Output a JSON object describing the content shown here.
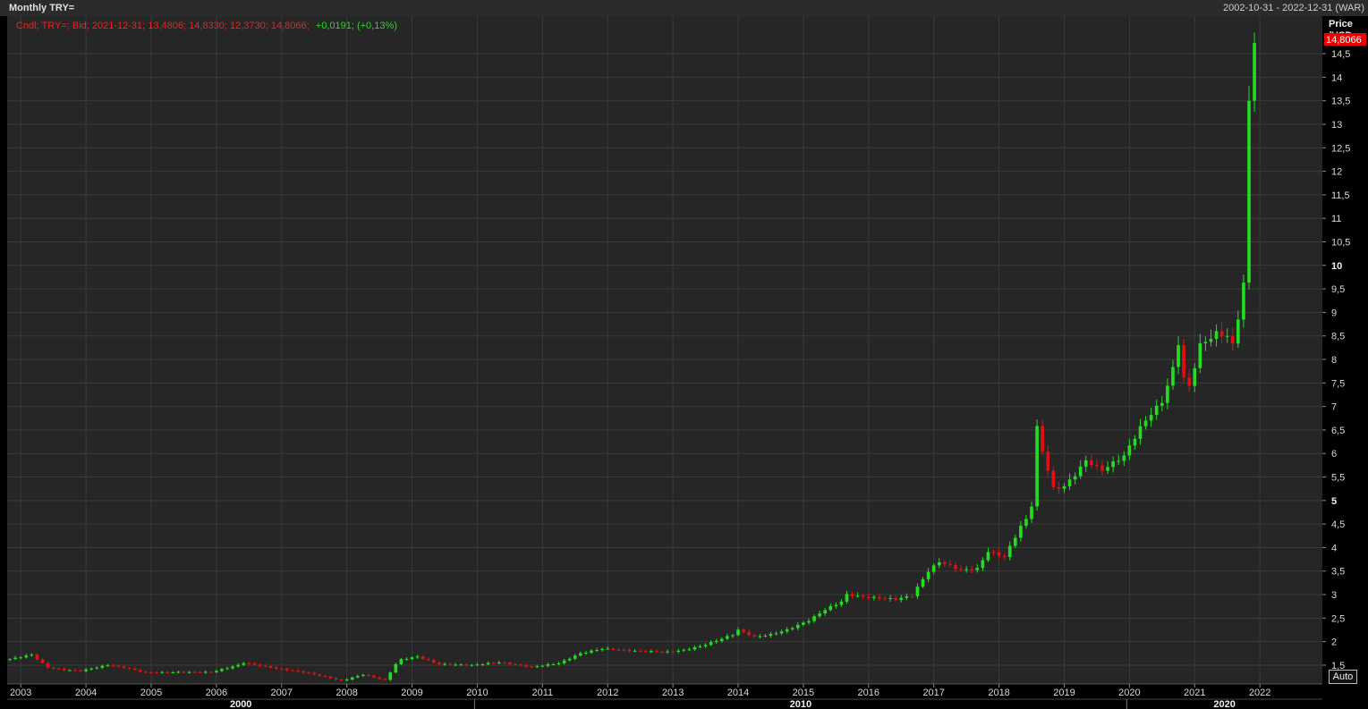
{
  "window": {
    "title": "Monthly TRY=",
    "date_range": "2002-10-31 - 2022-12-31 (WAR)",
    "auto_label": "Auto"
  },
  "legend": {
    "text": "Cndl; TRY=; Bid; 2021-12-31; 13,4806; 14,8330; 12,3730; 14,8066;",
    "change": "+0,0191; (+0,13%)"
  },
  "colors": {
    "up": "#22dd22",
    "down": "#dd1111",
    "background": "#262626",
    "grid": "#3a3a3a",
    "price_tag": "#ee0000"
  },
  "chart_data": {
    "type": "candlestick",
    "series_name": "TRY=",
    "ylabel": "Price\n/USD",
    "ylim": [
      1.1,
      15.3
    ],
    "yticks": [
      1.5,
      2,
      2.5,
      3,
      3.5,
      4,
      4.5,
      5,
      5.5,
      6,
      6.5,
      7,
      7.5,
      8,
      8.5,
      9,
      9.5,
      10,
      10.5,
      11,
      11.5,
      12,
      12.5,
      13,
      13.5,
      14,
      14.5
    ],
    "ytick_labels": [
      "1,5",
      "2",
      "2,5",
      "3",
      "3,5",
      "4",
      "4,5",
      "5",
      "5,5",
      "6",
      "6,5",
      "7",
      "7,5",
      "8",
      "8,5",
      "9",
      "9,5",
      "10",
      "10,5",
      "11",
      "11,5",
      "12",
      "12,5",
      "13",
      "13,5",
      "14",
      "14,5"
    ],
    "bold_ticks": [
      "5",
      "10"
    ],
    "last_price_label": "14,8066",
    "x_start_month": "2002-11",
    "xticks": [
      "2003",
      "2004",
      "2005",
      "2006",
      "2007",
      "2008",
      "2009",
      "2010",
      "2011",
      "2012",
      "2013",
      "2014",
      "2015",
      "2016",
      "2017",
      "2018",
      "2019",
      "2020",
      "2021",
      "2022"
    ],
    "decades": [
      "2000",
      "2010",
      "2020"
    ],
    "keyframes": [
      [
        "2002-11",
        1.63
      ],
      [
        "2003-03",
        1.72
      ],
      [
        "2003-06",
        1.45
      ],
      [
        "2003-09",
        1.4
      ],
      [
        "2003-12",
        1.38
      ],
      [
        "2004-05",
        1.5
      ],
      [
        "2004-08",
        1.45
      ],
      [
        "2004-12",
        1.34
      ],
      [
        "2005-06",
        1.35
      ],
      [
        "2005-12",
        1.35
      ],
      [
        "2006-05",
        1.5
      ],
      [
        "2006-06",
        1.55
      ],
      [
        "2006-12",
        1.43
      ],
      [
        "2007-06",
        1.33
      ],
      [
        "2007-12",
        1.17
      ],
      [
        "2008-04",
        1.3
      ],
      [
        "2008-08",
        1.18
      ],
      [
        "2008-10",
        1.52
      ],
      [
        "2008-11",
        1.62
      ],
      [
        "2009-02",
        1.68
      ],
      [
        "2009-06",
        1.52
      ],
      [
        "2009-12",
        1.5
      ],
      [
        "2010-05",
        1.56
      ],
      [
        "2010-11",
        1.46
      ],
      [
        "2011-04",
        1.54
      ],
      [
        "2011-08",
        1.75
      ],
      [
        "2011-12",
        1.85
      ],
      [
        "2012-06",
        1.8
      ],
      [
        "2012-12",
        1.78
      ],
      [
        "2013-03",
        1.82
      ],
      [
        "2013-06",
        1.9
      ],
      [
        "2013-09",
        2.02
      ],
      [
        "2013-12",
        2.15
      ],
      [
        "2014-01",
        2.25
      ],
      [
        "2014-04",
        2.1
      ],
      [
        "2014-07",
        2.15
      ],
      [
        "2014-10",
        2.25
      ],
      [
        "2015-02",
        2.45
      ],
      [
        "2015-05",
        2.68
      ],
      [
        "2015-08",
        2.85
      ],
      [
        "2015-09",
        3.0
      ],
      [
        "2015-12",
        2.95
      ],
      [
        "2016-06",
        2.9
      ],
      [
        "2016-09",
        2.98
      ],
      [
        "2016-12",
        3.5
      ],
      [
        "2017-02",
        3.7
      ],
      [
        "2017-06",
        3.52
      ],
      [
        "2017-09",
        3.55
      ],
      [
        "2017-11",
        3.92
      ],
      [
        "2018-02",
        3.8
      ],
      [
        "2018-05",
        4.45
      ],
      [
        "2018-06",
        4.6
      ],
      [
        "2018-07",
        4.9
      ],
      [
        "2018-08",
        6.55
      ],
      [
        "2018-09",
        6.05
      ],
      [
        "2018-11",
        5.25
      ],
      [
        "2019-01",
        5.3
      ],
      [
        "2019-03",
        5.55
      ],
      [
        "2019-05",
        5.85
      ],
      [
        "2019-08",
        5.65
      ],
      [
        "2019-12",
        5.95
      ],
      [
        "2020-03",
        6.55
      ],
      [
        "2020-05",
        6.85
      ],
      [
        "2020-07",
        7.1
      ],
      [
        "2020-09",
        7.8
      ],
      [
        "2020-10",
        8.35
      ],
      [
        "2020-11",
        7.6
      ],
      [
        "2020-12",
        7.42
      ],
      [
        "2021-02",
        8.3
      ],
      [
        "2021-05",
        8.55
      ],
      [
        "2021-07",
        8.5
      ],
      [
        "2021-08",
        8.3
      ],
      [
        "2021-09",
        8.9
      ],
      [
        "2021-10",
        9.6
      ],
      [
        "2021-11",
        13.48
      ],
      [
        "2021-12",
        14.8066
      ]
    ]
  }
}
